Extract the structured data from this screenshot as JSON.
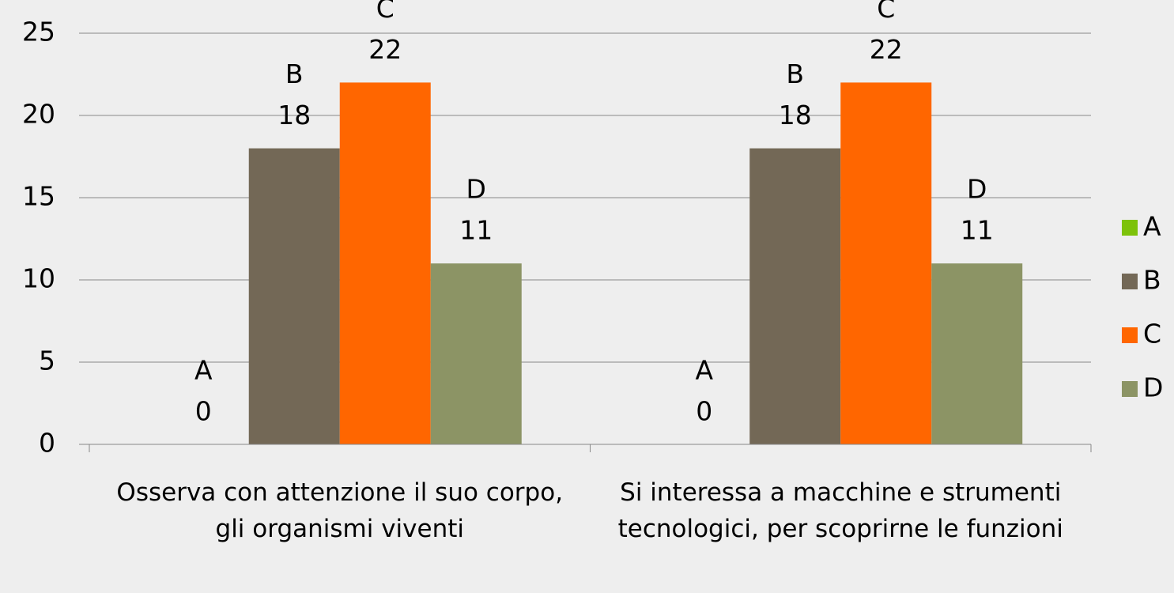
{
  "chart_data": {
    "type": "bar",
    "categories": [
      "Osserva con attenzione il suo corpo, gli organismi viventi",
      "Si interessa a macchine e strumenti tecnologici, per scoprirne le funzioni"
    ],
    "series": [
      {
        "name": "A",
        "color": "#7dc20a",
        "values": [
          0,
          0
        ]
      },
      {
        "name": "B",
        "color": "#736856",
        "values": [
          18,
          18
        ]
      },
      {
        "name": "C",
        "color": "#ff6600",
        "values": [
          22,
          22
        ]
      },
      {
        "name": "D",
        "color": "#8c9465",
        "values": [
          11,
          11
        ]
      }
    ],
    "ylim": [
      0,
      25
    ],
    "yticks": [
      0,
      5,
      10,
      15,
      20,
      25
    ],
    "grid": true,
    "legend": "right"
  }
}
